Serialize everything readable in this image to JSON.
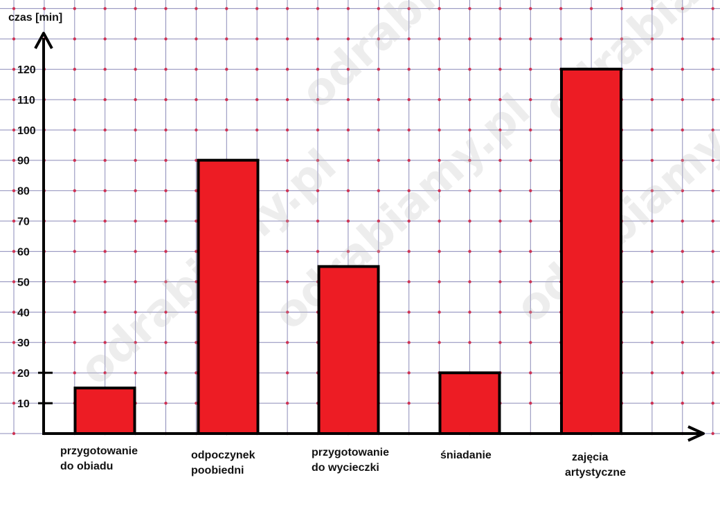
{
  "chart_data": {
    "type": "bar",
    "ylabel": "czas  [min]",
    "categories": [
      [
        "przygotowanie",
        "do obiadu"
      ],
      [
        "odpoczynek",
        "poobiedni"
      ],
      [
        "przygotowanie",
        "do wycieczki"
      ],
      [
        "śniadanie"
      ],
      [
        "zajęcia",
        "artystyczne"
      ]
    ],
    "values": [
      15,
      90,
      55,
      20,
      120
    ],
    "yticks": [
      10,
      20,
      30,
      40,
      50,
      60,
      70,
      80,
      90,
      100,
      110,
      120
    ],
    "ylim": [
      0,
      130
    ],
    "grid": true,
    "bar_color": "#ed1c24",
    "grid_color": "#8a8ab8",
    "grid_dot_color": "#cc3355"
  },
  "watermark": "odrabiamy.pl"
}
